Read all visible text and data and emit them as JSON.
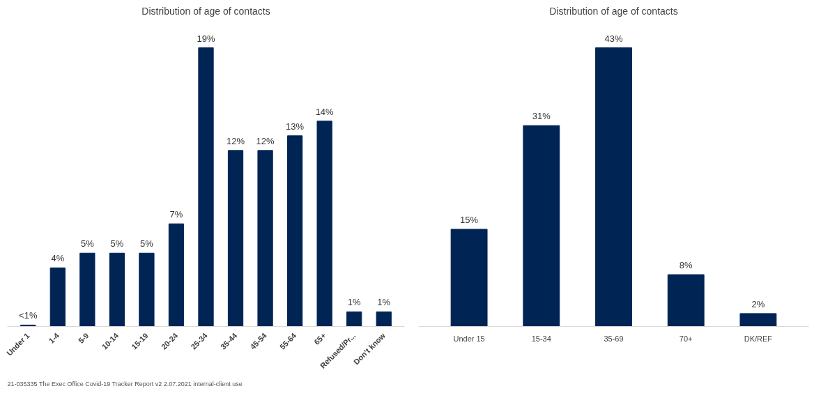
{
  "chart_data": [
    {
      "type": "bar",
      "title": "Distribution of age of contacts",
      "categories": [
        "Under 1",
        "1-4",
        "5-9",
        "10-14",
        "15-19",
        "20-24",
        "25-34",
        "35-44",
        "45-54",
        "55-64",
        "65+",
        "Refused/Pr...",
        "Don't know"
      ],
      "values": [
        0.1,
        4,
        5,
        5,
        5,
        7,
        19,
        12,
        12,
        13,
        14,
        1,
        1
      ],
      "value_labels": [
        "<1%",
        "4%",
        "5%",
        "5%",
        "5%",
        "7%",
        "19%",
        "12%",
        "12%",
        "13%",
        "14%",
        "1%",
        "1%"
      ],
      "color": "#002454",
      "grid": false,
      "annotations": [
        "21-035335 The Exec Office Covid-19 Tracker Report v2 2.07.2021 internal-client use"
      ]
    },
    {
      "type": "bar",
      "title": "Distribution of age of contacts",
      "categories": [
        "Under 15",
        "15-34",
        "35-69",
        "70+",
        "DK/REF"
      ],
      "values": [
        15,
        31,
        43,
        8,
        2
      ],
      "value_labels": [
        "15%",
        "31%",
        "43%",
        "8%",
        "2%"
      ],
      "color": "#002454",
      "grid": false
    }
  ]
}
